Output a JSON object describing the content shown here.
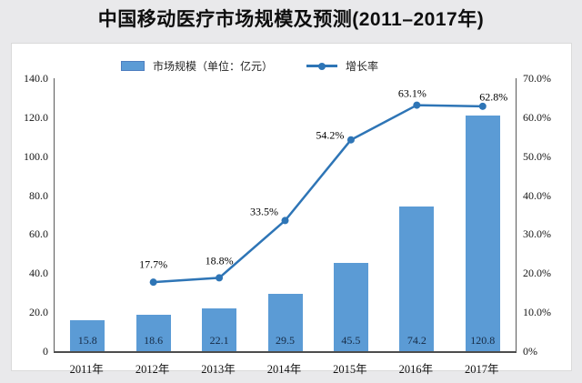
{
  "title": "中国移动医疗市场规模及预测(2011–2017年)",
  "legend": {
    "bar_label": "市场规模（单位：亿元）",
    "line_label": "增长率"
  },
  "colors": {
    "background": "#e9e9eb",
    "panel": "#ffffff",
    "bar_fill": "#5b9bd5",
    "bar_swatch_border": "#4d7ebf",
    "line_stroke": "#2e75b6",
    "axis_line": "#595959"
  },
  "chart_data": {
    "type": "bar",
    "combo": "bar+line",
    "title": "中国移动医疗市场规模及预测(2011–2017年)",
    "categories": [
      "2011年",
      "2012年",
      "2013年",
      "2014年",
      "2015年",
      "2016年",
      "2017年"
    ],
    "series": [
      {
        "name": "市场规模（单位：亿元）",
        "chart": "bar",
        "axis": "left",
        "values": [
          15.8,
          18.6,
          22.1,
          29.5,
          45.5,
          74.2,
          120.8
        ],
        "value_labels": [
          "15.8",
          "18.6",
          "22.1",
          "29.5",
          "45.5",
          "74.2",
          "120.8"
        ]
      },
      {
        "name": "增长率",
        "chart": "line",
        "axis": "right",
        "values": [
          null,
          17.7,
          18.8,
          33.5,
          54.2,
          63.1,
          62.8
        ],
        "value_labels": [
          null,
          "17.7%",
          "18.8%",
          "33.5%",
          "54.2%",
          "63.1%",
          "62.8%"
        ]
      }
    ],
    "left_axis": {
      "min": 0,
      "max": 140,
      "ticks": [
        "0",
        "20.0",
        "40.0",
        "60.0",
        "80.0",
        "100.0",
        "120.0",
        "140.0"
      ]
    },
    "right_axis": {
      "min": 0,
      "max": 70,
      "ticks": [
        "0%",
        "10.0%",
        "20.0%",
        "30.0%",
        "40.0%",
        "50.0%",
        "60.0%",
        "70.0%"
      ]
    },
    "grid": false,
    "legend_position": "top"
  }
}
